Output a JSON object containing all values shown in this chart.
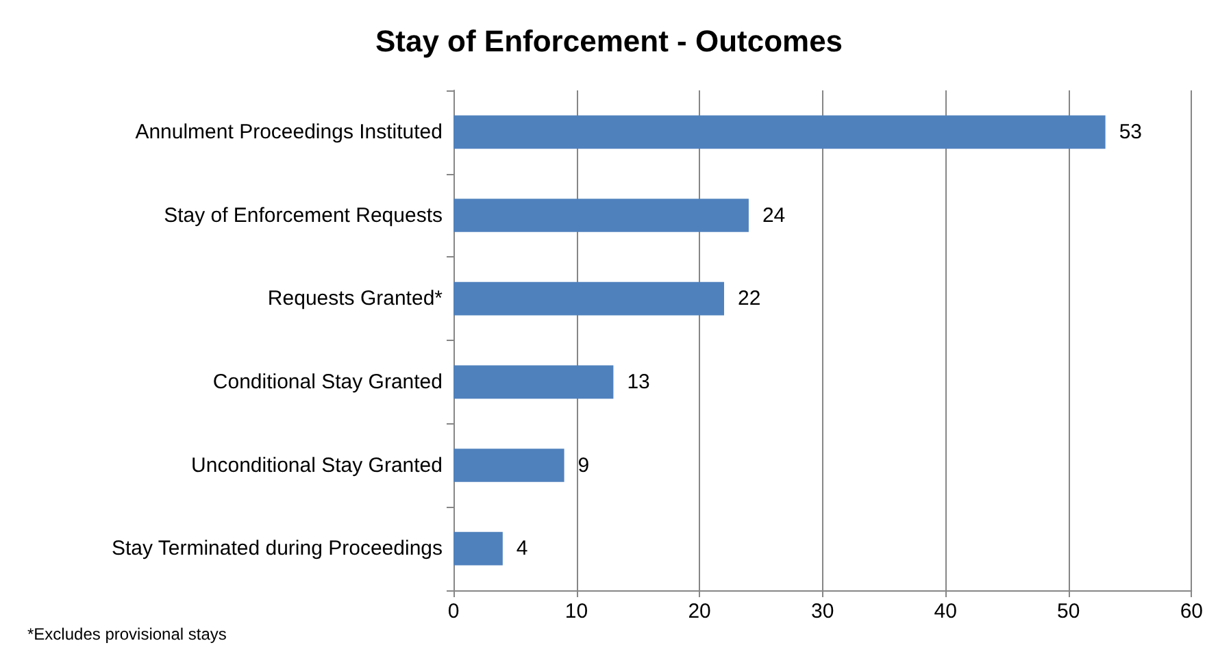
{
  "chart_data": {
    "type": "bar",
    "orientation": "horizontal",
    "title": "Stay of Enforcement - Outcomes",
    "categories": [
      "Annulment Proceedings Instituted",
      "Stay of Enforcement Requests",
      "Requests Granted*",
      "Conditional Stay Granted",
      "Unconditional Stay Granted",
      "Stay Terminated during Proceedings"
    ],
    "values": [
      53,
      24,
      22,
      13,
      9,
      4
    ],
    "color": "#4f81bd",
    "xlim": [
      0,
      60
    ],
    "xticks": [
      0,
      10,
      20,
      30,
      40,
      50,
      60
    ],
    "grid": "x",
    "data_labels": true,
    "annotations": [
      "*Excludes provisional stays"
    ]
  }
}
